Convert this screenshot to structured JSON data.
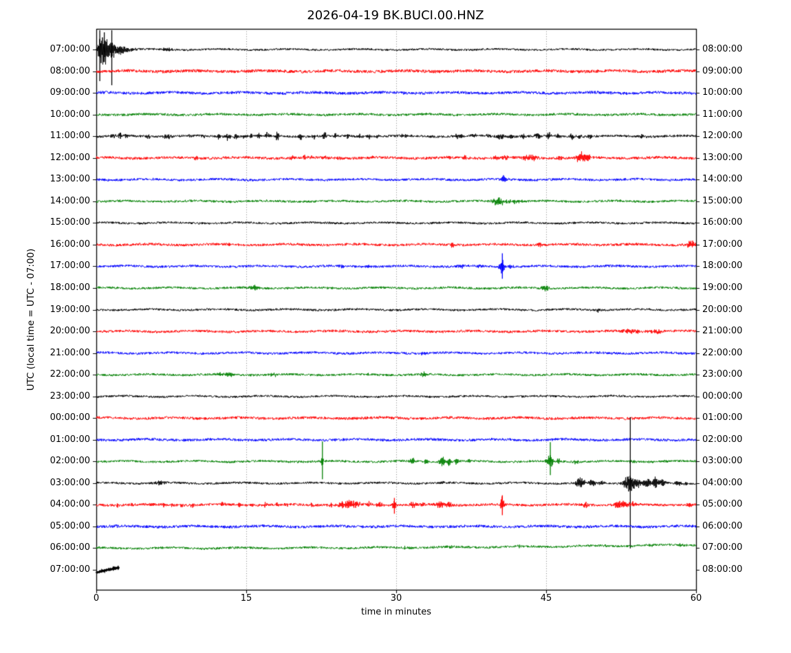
{
  "title": "2026-04-19 BK.BUCI.00.HNZ",
  "axes": {
    "y_label": "UTC (local time = UTC - 07:00)",
    "x_label": "time in minutes",
    "x_ticks": [
      "0",
      "15",
      "30",
      "45",
      "60"
    ],
    "x_tick_minutes": [
      0,
      15,
      30,
      45,
      60
    ],
    "x_range_minutes": [
      0,
      60
    ],
    "grid_minutes": [
      15,
      30,
      45
    ]
  },
  "colors": {
    "black": "#000000",
    "red": "#ff0000",
    "blue": "#0000ff",
    "green": "#008000"
  },
  "chart_data": {
    "type": "line",
    "variant": "seismogram-helicorder-dayplot",
    "minutes_per_row": 60,
    "note": "events are bursts [center_minute, amplitude_px, width_min]; vspikes are clipped spikes [minute, up_px, down_px]",
    "rows": [
      {
        "start": "07:00:00",
        "end": "08:00:00",
        "color": "black",
        "noise": 1.4,
        "events": [
          [
            0.5,
            20,
            0.3
          ],
          [
            0.95,
            14,
            0.28
          ],
          [
            1.6,
            16,
            0.28
          ],
          [
            2.2,
            7,
            0.4
          ],
          [
            3.0,
            3,
            0.6
          ],
          [
            7.0,
            2,
            0.5
          ]
        ],
        "vspikes": [
          [
            0.35,
            28,
            46
          ],
          [
            0.8,
            25,
            18
          ],
          [
            1.55,
            28,
            52
          ]
        ]
      },
      {
        "start": "08:00:00",
        "end": "09:00:00",
        "color": "red",
        "noise": 2.2,
        "events": []
      },
      {
        "start": "09:00:00",
        "end": "10:00:00",
        "color": "blue",
        "noise": 2.0,
        "events": []
      },
      {
        "start": "10:00:00",
        "end": "11:00:00",
        "color": "green",
        "noise": 1.7,
        "events": []
      },
      {
        "start": "11:00:00",
        "end": "12:00:00",
        "color": "black",
        "noise": 1.7,
        "events": [
          [
            1.7,
            4,
            0.15
          ],
          [
            2.4,
            5,
            0.12
          ],
          [
            3.0,
            4,
            0.12
          ],
          [
            3.8,
            3,
            0.12
          ],
          [
            5.2,
            3.5,
            0.12
          ],
          [
            7.1,
            3,
            0.3
          ],
          [
            9.4,
            3,
            0.12
          ],
          [
            10.7,
            3.5,
            0.15
          ],
          [
            12.2,
            4,
            0.12
          ],
          [
            13.1,
            5,
            0.2
          ],
          [
            14.0,
            6,
            0.12
          ],
          [
            14.8,
            4,
            0.12
          ],
          [
            15.5,
            5,
            0.12
          ],
          [
            16.3,
            4,
            0.12
          ],
          [
            17.1,
            4,
            0.15
          ],
          [
            18.1,
            9,
            0.1
          ],
          [
            20.4,
            7,
            0.1
          ],
          [
            21.8,
            4,
            0.15
          ],
          [
            22.8,
            10,
            0.1
          ],
          [
            23.9,
            4,
            0.12
          ],
          [
            25.2,
            4,
            0.15
          ],
          [
            26.3,
            3,
            0.12
          ],
          [
            27.3,
            4,
            0.12
          ],
          [
            28.2,
            3,
            0.12
          ],
          [
            30.8,
            3,
            0.2
          ],
          [
            36.2,
            4,
            0.25
          ],
          [
            37.8,
            3,
            0.3
          ],
          [
            39.3,
            3,
            0.2
          ],
          [
            40.4,
            4,
            0.3
          ],
          [
            41.3,
            3.5,
            0.25
          ],
          [
            42.8,
            3,
            0.2
          ],
          [
            44.2,
            4,
            0.3
          ],
          [
            45.2,
            7,
            0.15
          ],
          [
            46.3,
            3,
            0.2
          ],
          [
            47.6,
            6,
            0.12
          ],
          [
            48.3,
            4,
            0.2
          ],
          [
            49.4,
            4,
            0.15
          ],
          [
            54.6,
            2.5,
            0.3
          ]
        ]
      },
      {
        "start": "12:00:00",
        "end": "13:00:00",
        "color": "red",
        "noise": 1.9,
        "events": [
          [
            10.0,
            2,
            0.15
          ],
          [
            19.6,
            2.5,
            0.2
          ],
          [
            20.8,
            2.5,
            0.15
          ],
          [
            21.4,
            2.5,
            0.15
          ],
          [
            22.9,
            3,
            0.2
          ],
          [
            24.2,
            2.5,
            0.15
          ],
          [
            27.5,
            2,
            0.2
          ],
          [
            35.2,
            3,
            0.2
          ],
          [
            36.9,
            2.5,
            0.2
          ],
          [
            39.9,
            3,
            0.2
          ],
          [
            40.9,
            3.5,
            0.25
          ],
          [
            43.0,
            4,
            0.3
          ],
          [
            43.8,
            4,
            0.25
          ],
          [
            46.3,
            3.5,
            0.2
          ],
          [
            48.5,
            9,
            0.35
          ],
          [
            49.3,
            5,
            0.2
          ]
        ]
      },
      {
        "start": "13:00:00",
        "end": "14:00:00",
        "color": "blue",
        "noise": 1.7,
        "events": [
          [
            40.7,
            6,
            0.2
          ]
        ]
      },
      {
        "start": "14:00:00",
        "end": "15:00:00",
        "color": "green",
        "noise": 1.6,
        "events": [
          [
            40.3,
            6.5,
            0.45
          ],
          [
            41.5,
            2.5,
            0.8
          ]
        ]
      },
      {
        "start": "15:00:00",
        "end": "16:00:00",
        "color": "black",
        "noise": 1.5,
        "events": []
      },
      {
        "start": "16:00:00",
        "end": "17:00:00",
        "color": "red",
        "noise": 1.8,
        "events": [
          [
            13.2,
            2,
            0.12
          ],
          [
            35.6,
            6,
            0.12
          ],
          [
            44.3,
            2.5,
            0.2
          ],
          [
            59.5,
            6,
            0.3
          ]
        ]
      },
      {
        "start": "17:00:00",
        "end": "18:00:00",
        "color": "blue",
        "noise": 1.7,
        "events": [
          [
            24.6,
            2.5,
            0.2
          ],
          [
            27.2,
            2.5,
            0.15
          ],
          [
            36.5,
            3,
            0.2
          ],
          [
            38.3,
            2.5,
            0.15
          ],
          [
            40.6,
            12,
            0.18
          ],
          [
            41.5,
            2.5,
            0.3
          ]
        ],
        "vspikes": [
          [
            40.62,
            19,
            18
          ]
        ]
      },
      {
        "start": "18:00:00",
        "end": "19:00:00",
        "color": "green",
        "noise": 1.6,
        "events": [
          [
            15.9,
            4,
            0.4
          ],
          [
            44.9,
            5,
            0.25
          ]
        ]
      },
      {
        "start": "19:00:00",
        "end": "20:00:00",
        "color": "black",
        "noise": 1.5,
        "events": [
          [
            50.2,
            3.5,
            0.12
          ]
        ]
      },
      {
        "start": "20:00:00",
        "end": "21:00:00",
        "color": "red",
        "noise": 1.8,
        "events": [
          [
            53.5,
            2.2,
            1.2
          ],
          [
            56.0,
            2.2,
            0.8
          ]
        ]
      },
      {
        "start": "21:00:00",
        "end": "22:00:00",
        "color": "blue",
        "noise": 1.7,
        "events": [
          [
            32.6,
            2.5,
            0.2
          ]
        ]
      },
      {
        "start": "22:00:00",
        "end": "23:00:00",
        "color": "green",
        "noise": 1.6,
        "events": [
          [
            12.4,
            2.5,
            0.2
          ],
          [
            13.3,
            4.5,
            0.25
          ],
          [
            17.8,
            3.5,
            0.25
          ],
          [
            27.5,
            1.8,
            0.2
          ],
          [
            32.8,
            4.5,
            0.25
          ]
        ]
      },
      {
        "start": "23:00:00",
        "end": "00:00:00",
        "color": "black",
        "noise": 1.5,
        "events": []
      },
      {
        "start": "00:00:00",
        "end": "01:00:00",
        "color": "red",
        "noise": 1.9,
        "events": []
      },
      {
        "start": "01:00:00",
        "end": "02:00:00",
        "color": "blue",
        "noise": 1.9,
        "events": []
      },
      {
        "start": "02:00:00",
        "end": "03:00:00",
        "color": "green",
        "noise": 1.6,
        "events": [
          [
            22.6,
            7,
            0.1
          ],
          [
            31.6,
            6,
            0.15
          ],
          [
            33.0,
            4.5,
            0.15
          ],
          [
            34.6,
            9,
            0.2
          ],
          [
            35.3,
            7,
            0.15
          ],
          [
            36.1,
            4.5,
            0.15
          ],
          [
            37.3,
            4,
            0.12
          ],
          [
            45.4,
            11,
            0.22
          ],
          [
            46.2,
            4,
            0.2
          ],
          [
            48.0,
            3,
            0.15
          ],
          [
            53.6,
            2.5,
            0.2
          ],
          [
            57.0,
            2.5,
            0.15
          ]
        ],
        "vspikes": [
          [
            22.62,
            29,
            26
          ],
          [
            45.42,
            28,
            20
          ]
        ]
      },
      {
        "start": "03:00:00",
        "end": "04:00:00",
        "color": "black",
        "noise": 1.5,
        "events": [
          [
            6.4,
            3.5,
            0.35
          ],
          [
            34.5,
            2,
            0.2
          ],
          [
            48.4,
            9,
            0.3
          ],
          [
            49.6,
            5,
            0.25
          ],
          [
            50.5,
            4,
            0.2
          ],
          [
            53.3,
            13,
            0.4
          ],
          [
            54.2,
            6,
            0.3
          ],
          [
            55.1,
            8,
            0.25
          ],
          [
            55.9,
            10,
            0.2
          ],
          [
            56.6,
            6,
            0.25
          ],
          [
            58.3,
            4,
            0.3
          ],
          [
            59.0,
            3,
            0.2
          ]
        ],
        "vspikes": [
          [
            53.42,
            96,
            95
          ]
        ]
      },
      {
        "start": "04:00:00",
        "end": "05:00:00",
        "color": "red",
        "noise": 1.8,
        "events": [
          [
            2.1,
            2.5,
            0.12
          ],
          [
            3.6,
            3,
            0.12
          ],
          [
            5.5,
            2.5,
            0.12
          ],
          [
            6.7,
            3,
            0.12
          ],
          [
            7.6,
            2.5,
            0.12
          ],
          [
            8.6,
            3,
            0.15
          ],
          [
            9.6,
            3,
            0.12
          ],
          [
            12.7,
            3.5,
            0.15
          ],
          [
            14.3,
            3.5,
            0.15
          ],
          [
            15.6,
            3,
            0.12
          ],
          [
            16.9,
            3.5,
            0.15
          ],
          [
            18.1,
            4,
            0.2
          ],
          [
            19.1,
            3.5,
            0.15
          ],
          [
            21.5,
            3,
            0.15
          ],
          [
            23.5,
            4,
            0.2
          ],
          [
            24.6,
            5,
            0.3
          ],
          [
            25.3,
            7,
            0.3
          ],
          [
            26.0,
            6,
            0.25
          ],
          [
            27.2,
            4,
            0.2
          ],
          [
            28.3,
            4,
            0.2
          ],
          [
            29.8,
            8,
            0.12
          ],
          [
            31.7,
            4,
            0.2
          ],
          [
            32.7,
            3.5,
            0.15
          ],
          [
            34.4,
            6,
            0.3
          ],
          [
            35.3,
            4,
            0.2
          ],
          [
            40.6,
            11,
            0.15
          ],
          [
            48.9,
            4,
            0.25
          ],
          [
            52.1,
            5,
            0.3
          ],
          [
            52.9,
            7,
            0.3
          ],
          [
            53.5,
            4,
            0.25
          ],
          [
            59.3,
            3,
            0.2
          ]
        ],
        "vspikes": [
          [
            29.82,
            10,
            13
          ],
          [
            40.62,
            14,
            15
          ]
        ]
      },
      {
        "start": "05:00:00",
        "end": "06:00:00",
        "color": "blue",
        "noise": 1.9,
        "events": [
          [
            1.8,
            2.5,
            0.3
          ]
        ]
      },
      {
        "start": "06:00:00",
        "end": "07:00:00",
        "color": "green",
        "noise": 1.6,
        "events": [
          [
            30.9,
            2,
            0.2
          ],
          [
            35.4,
            2,
            0.2
          ],
          [
            42.4,
            2.2,
            0.2
          ],
          [
            51.0,
            2,
            0.2
          ],
          [
            55.5,
            2.2,
            0.2
          ],
          [
            58.5,
            2.5,
            0.25
          ]
        ],
        "drift": [
          0,
          -5,
          2.5
        ]
      },
      {
        "start": "07:00:00",
        "end": "08:00:00",
        "color": "black",
        "noise": 0.9,
        "events": [],
        "duration": 2.3,
        "lw": 2.5,
        "drift": [
          4,
          -4,
          0.8
        ]
      }
    ]
  }
}
